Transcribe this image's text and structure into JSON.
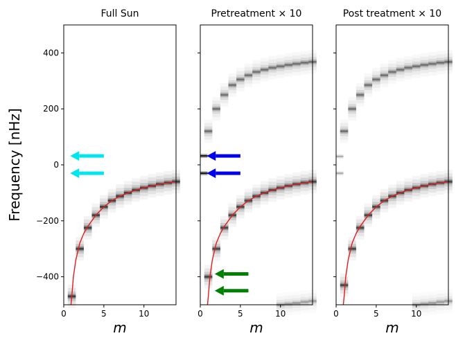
{
  "chart_data": [
    {
      "type": "heatmap",
      "title": "Full Sun",
      "xlabel": "m",
      "ylabel": "Frequency [nHz]",
      "xlim": [
        0,
        14
      ],
      "ylim": [
        -500,
        500
      ],
      "xticks": [
        0,
        5,
        10
      ],
      "yticks": [
        -400,
        -200,
        0,
        200,
        400
      ],
      "ytick_labels": [
        "−400",
        "−200",
        "0",
        "200",
        "400"
      ],
      "ridges": [
        {
          "name": "",
          "x": [
            1,
            2,
            3,
            4,
            5,
            6,
            7,
            8,
            9,
            10,
            11,
            12,
            13,
            14
          ],
          "y": [
            -470,
            -300,
            -225,
            -180,
            -150,
            -128,
            -112,
            -100,
            -90,
            -82,
            -75,
            -69,
            -64,
            -60
          ],
          "alpha": 0.85
        }
      ],
      "bands": [],
      "curve": {
        "color": "#e41a1c",
        "x": [
          0.9,
          1,
          1.2,
          1.5,
          2,
          2.5,
          3,
          4,
          5,
          6,
          7,
          8,
          9,
          10,
          11,
          12,
          13,
          14
        ],
        "y": [
          -500,
          -470,
          -400,
          -340,
          -280,
          -245,
          -220,
          -180,
          -150,
          -128,
          -112,
          -100,
          -90,
          -82,
          -75,
          -69,
          -64,
          -60
        ]
      },
      "arrows": [
        {
          "color": "#00e5ee",
          "x_tail": 5,
          "y_tail": 32,
          "x_head": 0.8,
          "y_head": 32
        },
        {
          "color": "#00e5ee",
          "x_tail": 5,
          "y_tail": -30,
          "x_head": 0.8,
          "y_head": -30
        }
      ]
    },
    {
      "type": "heatmap",
      "title": "Pretreatment × 10",
      "xlabel": "m",
      "ylabel": "",
      "xlim": [
        0,
        14
      ],
      "ylim": [
        -500,
        500
      ],
      "xticks": [
        0,
        5,
        10
      ],
      "yticks": [
        -400,
        -200,
        0,
        200,
        400
      ],
      "ytick_labels": [],
      "ridges": [
        {
          "name": "",
          "x": [
            1,
            2,
            3,
            4,
            5,
            6,
            7,
            8,
            9,
            10,
            11,
            12,
            13,
            14
          ],
          "y": [
            -400,
            -300,
            -225,
            -180,
            -150,
            -128,
            -112,
            -100,
            -90,
            -82,
            -75,
            -69,
            -64,
            -60
          ],
          "alpha": 0.8
        },
        {
          "name": "",
          "x": [
            1,
            2,
            3,
            4,
            5,
            6,
            7,
            8,
            9,
            10,
            11,
            12,
            13,
            14
          ],
          "y": [
            120,
            200,
            250,
            285,
            305,
            320,
            332,
            340,
            347,
            352,
            357,
            361,
            365,
            368
          ],
          "alpha": 0.55
        },
        {
          "name": "",
          "x": [
            10,
            11,
            12,
            13,
            14
          ],
          "y": [
            -500,
            -497,
            -494,
            -490,
            -487
          ],
          "alpha": 0.35
        }
      ],
      "bands": [
        {
          "y": 32,
          "alpha": 0.85
        },
        {
          "y": -30,
          "alpha": 0.85
        }
      ],
      "curve": {
        "color": "#e41a1c",
        "x": [
          0.9,
          1,
          1.2,
          1.5,
          2,
          2.5,
          3,
          4,
          5,
          6,
          7,
          8,
          9,
          10,
          11,
          12,
          13,
          14
        ],
        "y": [
          -500,
          -470,
          -400,
          -340,
          -280,
          -245,
          -220,
          -180,
          -150,
          -128,
          -112,
          -100,
          -90,
          -82,
          -75,
          -69,
          -64,
          -60
        ]
      },
      "arrows": [
        {
          "color": "#0000ee",
          "x_tail": 5,
          "y_tail": 32,
          "x_head": 0.8,
          "y_head": 32
        },
        {
          "color": "#0000ee",
          "x_tail": 5,
          "y_tail": -30,
          "x_head": 0.8,
          "y_head": -30
        },
        {
          "color": "#008000",
          "x_tail": 6,
          "y_tail": -390,
          "x_head": 1.8,
          "y_head": -390
        },
        {
          "color": "#008000",
          "x_tail": 6,
          "y_tail": -450,
          "x_head": 1.8,
          "y_head": -450
        }
      ]
    },
    {
      "type": "heatmap",
      "title": "Post treatment × 10",
      "xlabel": "m",
      "ylabel": "",
      "xlim": [
        0,
        14
      ],
      "ylim": [
        -500,
        500
      ],
      "xticks": [
        0,
        5,
        10
      ],
      "yticks": [
        -400,
        -200,
        0,
        200,
        400
      ],
      "ytick_labels": [],
      "ridges": [
        {
          "name": "",
          "x": [
            1,
            2,
            3,
            4,
            5,
            6,
            7,
            8,
            9,
            10,
            11,
            12,
            13,
            14
          ],
          "y": [
            -430,
            -300,
            -225,
            -180,
            -150,
            -128,
            -112,
            -100,
            -90,
            -82,
            -75,
            -69,
            -64,
            -60
          ],
          "alpha": 0.8
        },
        {
          "name": "",
          "x": [
            1,
            2,
            3,
            4,
            5,
            6,
            7,
            8,
            9,
            10,
            11,
            12,
            13,
            14
          ],
          "y": [
            120,
            200,
            250,
            285,
            305,
            320,
            332,
            340,
            347,
            352,
            357,
            361,
            365,
            368
          ],
          "alpha": 0.55
        },
        {
          "name": "",
          "x": [
            10,
            11,
            12,
            13,
            14
          ],
          "y": [
            -500,
            -497,
            -494,
            -490,
            -487
          ],
          "alpha": 0.35
        }
      ],
      "bands": [
        {
          "y": 30,
          "alpha": 0.25
        },
        {
          "y": -30,
          "alpha": 0.25
        }
      ],
      "curve": {
        "color": "#e41a1c",
        "x": [
          0.9,
          1,
          1.2,
          1.5,
          2,
          2.5,
          3,
          4,
          5,
          6,
          7,
          8,
          9,
          10,
          11,
          12,
          13,
          14
        ],
        "y": [
          -500,
          -470,
          -400,
          -340,
          -280,
          -245,
          -220,
          -180,
          -150,
          -128,
          -112,
          -100,
          -90,
          -82,
          -75,
          -69,
          -64,
          -60
        ]
      },
      "arrows": []
    }
  ]
}
